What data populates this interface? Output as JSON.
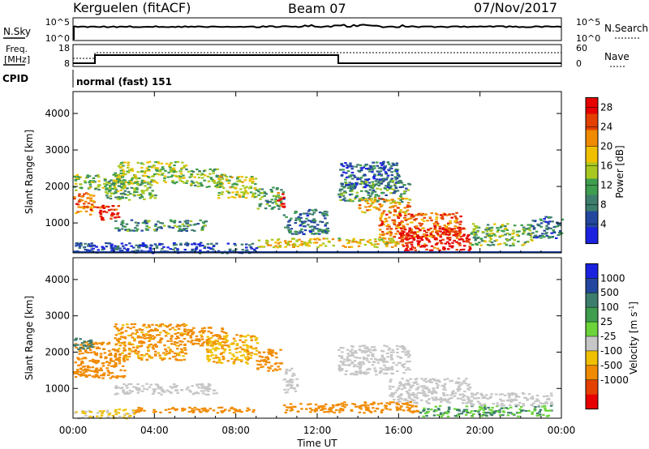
{
  "header": {
    "station": "Kerguelen (fitACF)",
    "beam": "Beam 07",
    "date": "07/Nov/2017"
  },
  "noise_panel": {
    "left_label": "N.Sky",
    "right_label": "N.Search",
    "y_ticks": [
      "10^5",
      "10^0"
    ]
  },
  "freq_panel": {
    "left_label_1": "Freq.",
    "left_label_2": "[MHz]",
    "right_label": "Nave",
    "y_ticks_left": [
      "18",
      "8"
    ],
    "y_ticks_right": [
      "60",
      "0"
    ]
  },
  "cpid": {
    "label": "CPID",
    "value": "normal (fast) 151"
  },
  "chart_data": [
    {
      "type": "heatmap",
      "title": "",
      "quantity": "Power",
      "xlabel": "Time UT",
      "ylabel": "Slant Range [km]",
      "colorbar_label": "Power [dB]",
      "xlim": [
        0,
        24
      ],
      "ylim": [
        180,
        4600
      ],
      "x_ticks": [
        "00:00",
        "04:00",
        "08:00",
        "12:00",
        "16:00",
        "20:00",
        "00:00"
      ],
      "y_ticks": [
        "1000",
        "2000",
        "3000",
        "4000"
      ],
      "colorbar_ticks": [
        "4",
        "8",
        "12",
        "16",
        "20",
        "24",
        "28"
      ],
      "colorbar_range": [
        0,
        30
      ],
      "colorbar_colors": [
        "#1a22e0",
        "#23479e",
        "#3d7d6d",
        "#3e9d4f",
        "#a8c820",
        "#f0c000",
        "#f08a00",
        "#e44000",
        "#e60000"
      ],
      "regions": [
        {
          "t0": 0.0,
          "t1": 1.0,
          "r0": 1250,
          "r1": 1900,
          "v": 22
        },
        {
          "t0": 1.0,
          "t1": 2.2,
          "r0": 1100,
          "r1": 1500,
          "v": 27
        },
        {
          "t0": 0.0,
          "t1": 2.5,
          "r0": 1900,
          "r1": 2350,
          "v": 14
        },
        {
          "t0": 1.5,
          "t1": 4.0,
          "r0": 1650,
          "r1": 2200,
          "v": 12
        },
        {
          "t0": 2.0,
          "t1": 5.5,
          "r0": 2100,
          "r1": 2700,
          "v": 15
        },
        {
          "t0": 5.5,
          "t1": 7.5,
          "r0": 2000,
          "r1": 2500,
          "v": 13
        },
        {
          "t0": 7.0,
          "t1": 9.0,
          "r0": 1700,
          "r1": 2300,
          "v": 16
        },
        {
          "t0": 9.0,
          "t1": 10.3,
          "r0": 1400,
          "r1": 2000,
          "v": 11
        },
        {
          "t0": 10.0,
          "t1": 10.4,
          "r0": 1450,
          "r1": 1850,
          "v": 26
        },
        {
          "t0": 2.0,
          "t1": 6.5,
          "r0": 800,
          "r1": 1100,
          "v": 9
        },
        {
          "t0": 10.3,
          "t1": 12.5,
          "r0": 700,
          "r1": 1400,
          "v": 8
        },
        {
          "t0": 13.0,
          "t1": 16.5,
          "r0": 1600,
          "r1": 2200,
          "v": 10
        },
        {
          "t0": 13.0,
          "t1": 16.0,
          "r0": 2000,
          "r1": 2700,
          "v": 6
        },
        {
          "t0": 14.0,
          "t1": 16.5,
          "r0": 1300,
          "r1": 1700,
          "v": 20
        },
        {
          "t0": 15.0,
          "t1": 19.0,
          "r0": 600,
          "r1": 1300,
          "v": 23
        },
        {
          "t0": 16.0,
          "t1": 19.5,
          "r0": 250,
          "r1": 900,
          "v": 28
        },
        {
          "t0": 19.5,
          "t1": 22.5,
          "r0": 400,
          "r1": 1000,
          "v": 13
        },
        {
          "t0": 22.5,
          "t1": 24.0,
          "r0": 600,
          "r1": 1200,
          "v": 7
        },
        {
          "t0": 9.0,
          "t1": 16.0,
          "r0": 350,
          "r1": 600,
          "v": 18
        },
        {
          "t0": 0.0,
          "t1": 9.0,
          "r0": 190,
          "r1": 480,
          "v": 5
        }
      ]
    },
    {
      "type": "heatmap",
      "title": "",
      "quantity": "Velocity",
      "xlabel": "Time UT",
      "ylabel": "Slant Range [km]",
      "colorbar_label": "Velocity [m s^-1]",
      "xlim": [
        0,
        24
      ],
      "ylim": [
        180,
        4600
      ],
      "x_ticks": [
        "00:00",
        "04:00",
        "08:00",
        "12:00",
        "16:00",
        "20:00",
        "00:00"
      ],
      "y_ticks": [
        "1000",
        "2000",
        "3000",
        "4000"
      ],
      "colorbar_ticks": [
        "1000",
        "500",
        "100",
        "25",
        "-25",
        "-100",
        "-500",
        "-1000"
      ],
      "colorbar_colors": [
        "#1a22e0",
        "#23479e",
        "#3d7d6d",
        "#3e9d4f",
        "#6ad43a",
        "#c6c6c6",
        "#f0c000",
        "#f08a00",
        "#e44000",
        "#e60000"
      ],
      "regions": [
        {
          "t0": 0.0,
          "t1": 2.5,
          "r0": 1300,
          "r1": 2300,
          "v": -150
        },
        {
          "t0": 2.0,
          "t1": 5.5,
          "r0": 1800,
          "r1": 2800,
          "v": -120
        },
        {
          "t0": 5.5,
          "t1": 7.5,
          "r0": 2200,
          "r1": 2700,
          "v": -140
        },
        {
          "t0": 6.5,
          "t1": 9.0,
          "r0": 1700,
          "r1": 2500,
          "v": -90
        },
        {
          "t0": 9.0,
          "t1": 10.2,
          "r0": 1500,
          "r1": 2100,
          "v": -200
        },
        {
          "t0": 2.0,
          "t1": 7.0,
          "r0": 850,
          "r1": 1150,
          "v": 0
        },
        {
          "t0": 10.3,
          "t1": 11.0,
          "r0": 900,
          "r1": 1600,
          "v": 0
        },
        {
          "t0": 13.0,
          "t1": 16.5,
          "r0": 1400,
          "r1": 2200,
          "v": 0
        },
        {
          "t0": 15.5,
          "t1": 19.5,
          "r0": 600,
          "r1": 1300,
          "v": 0
        },
        {
          "t0": 13.0,
          "t1": 17.0,
          "r0": 350,
          "r1": 650,
          "v": -140
        },
        {
          "t0": 10.3,
          "t1": 13.0,
          "r0": 350,
          "r1": 600,
          "v": -180
        },
        {
          "t0": 17.0,
          "t1": 23.5,
          "r0": 250,
          "r1": 550,
          "v": 60
        },
        {
          "t0": 19.5,
          "t1": 23.5,
          "r0": 550,
          "r1": 900,
          "v": 0
        },
        {
          "t0": 0.0,
          "t1": 3.0,
          "r0": 200,
          "r1": 450,
          "v": -30
        },
        {
          "t0": 3.0,
          "t1": 9.0,
          "r0": 350,
          "r1": 500,
          "v": -300
        },
        {
          "t0": 0.0,
          "t1": 1.0,
          "r0": 2100,
          "r1": 2400,
          "v": 140
        }
      ]
    }
  ]
}
